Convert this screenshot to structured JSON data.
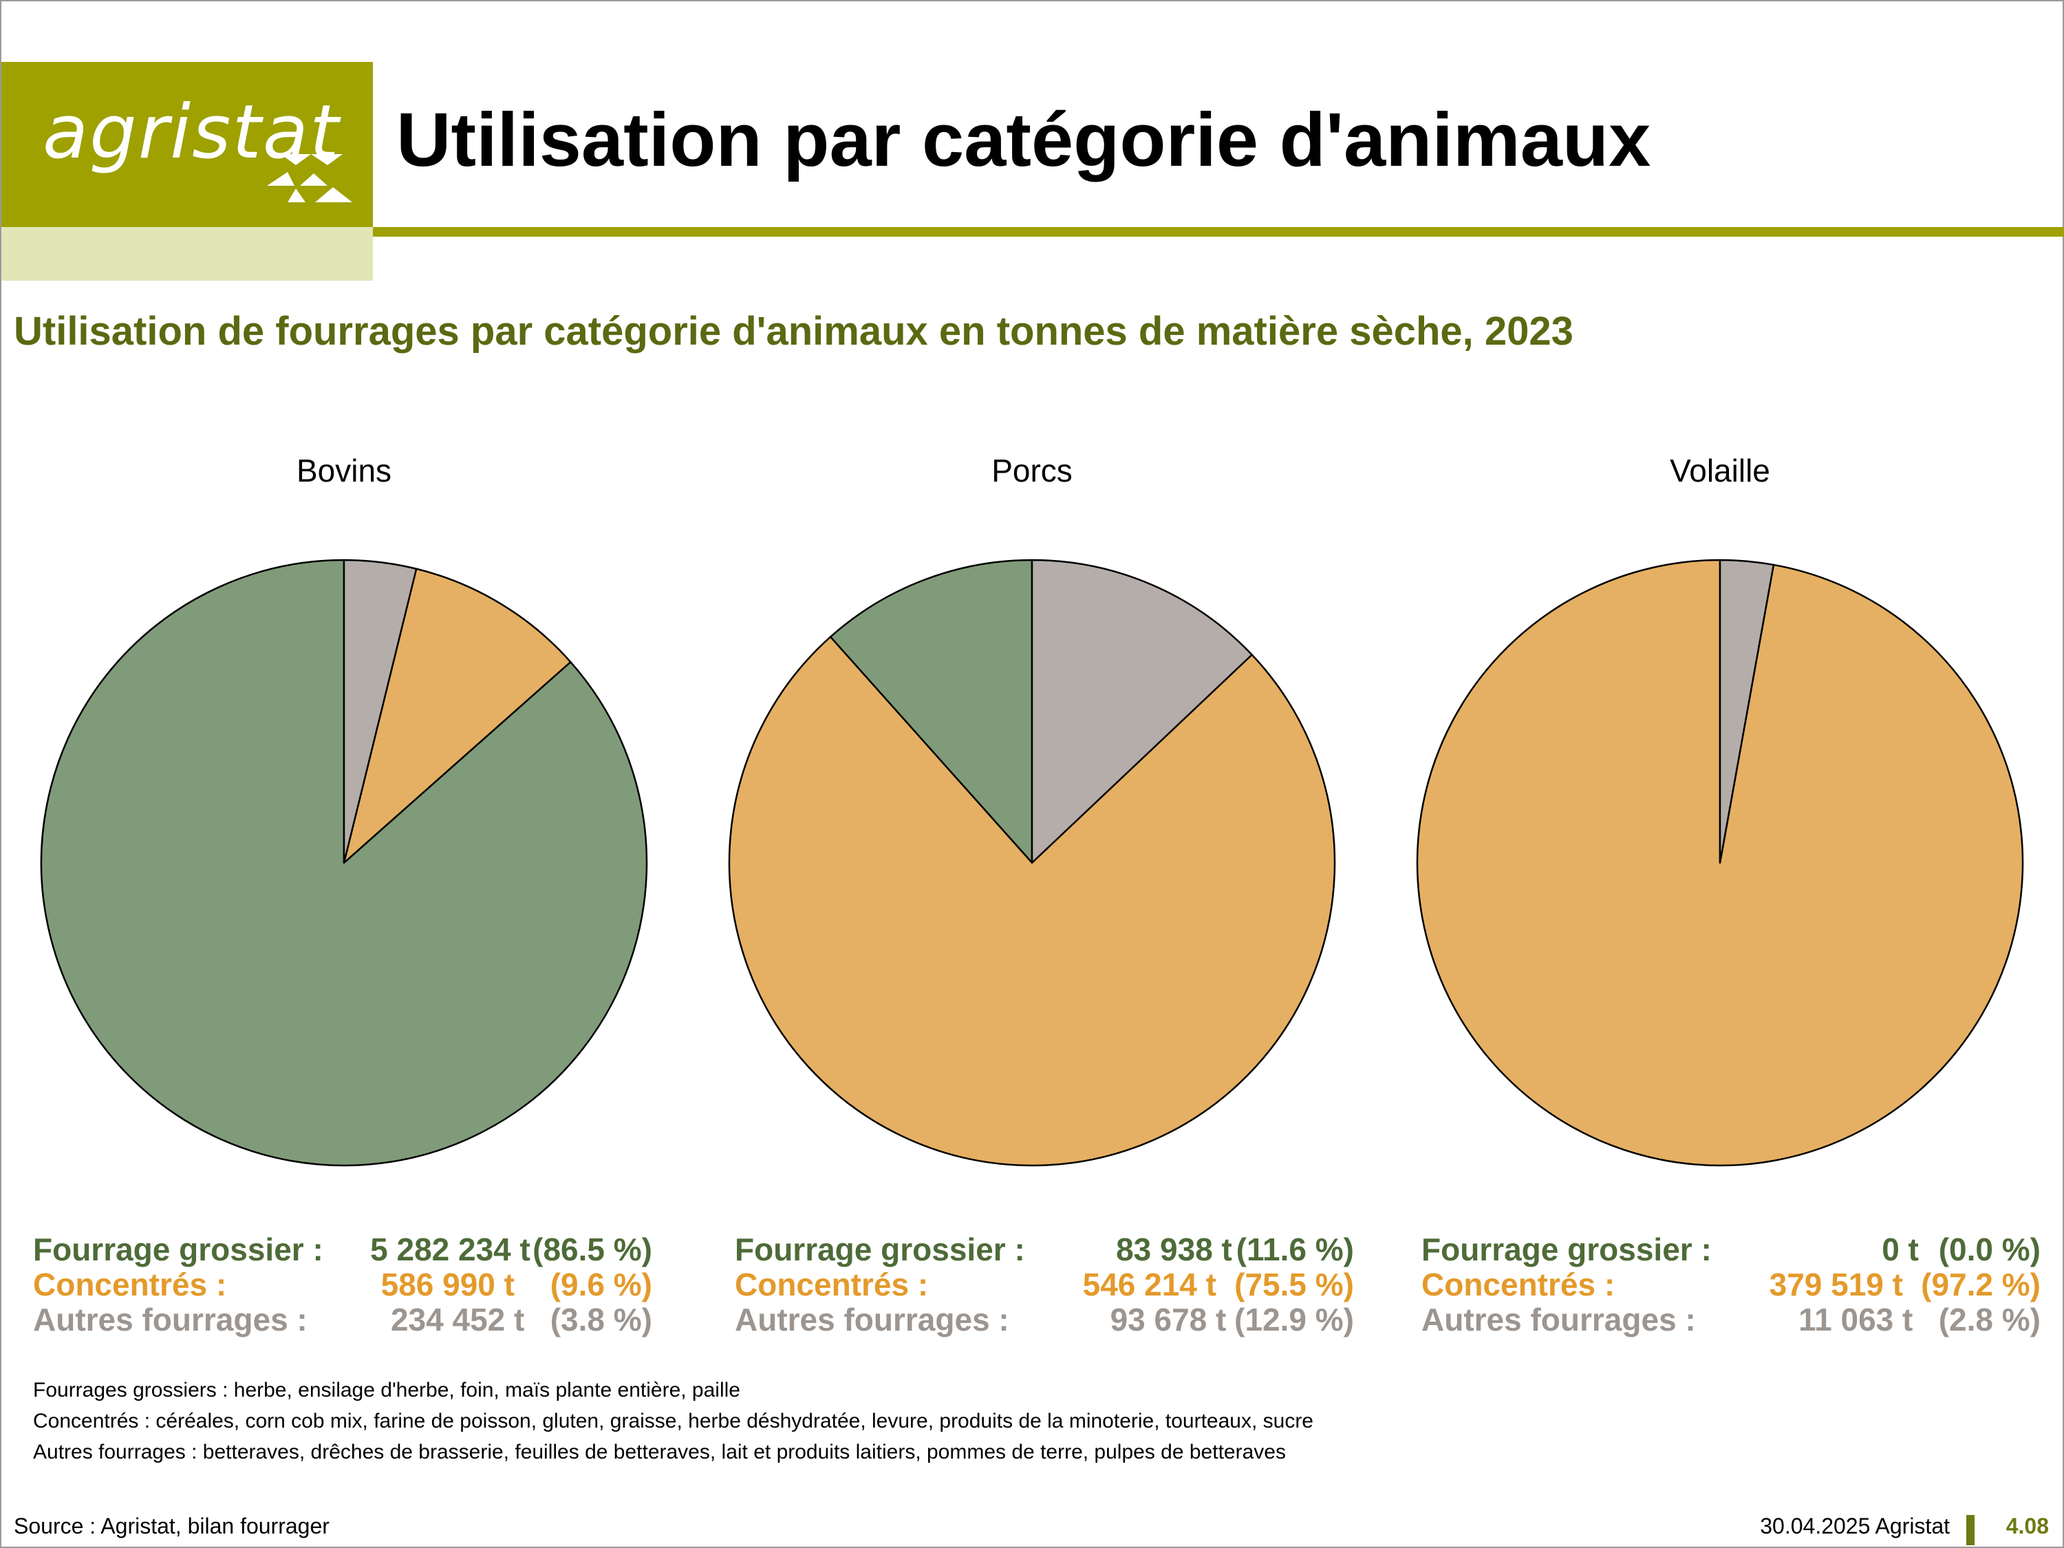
{
  "header": {
    "logo_text": "agristat",
    "title": "Utilisation par catégorie d'animaux"
  },
  "subtitle": "Utilisation de fourrages par catégorie d'animaux en tonnes de matière sèche, 2023",
  "colors": {
    "accent": "#9ea100",
    "accent_light": "#e2e6b6",
    "subtitle": "#5a6a12",
    "fourrage_grossier": "#809b7a",
    "concentres": "#e5b063",
    "autres_fourrages": "#b4adaa",
    "fourrage_grossier_text": "#4e6b38",
    "concentres_text": "#e49a2b",
    "autres_fourrages_text": "#9c9590"
  },
  "chart_data": [
    {
      "type": "pie",
      "title": "Bovins",
      "categories": [
        "Fourrage grossier :",
        "Concentrés :",
        "Autres fourrages :"
      ],
      "values": [
        5282234,
        586990,
        234452
      ],
      "value_labels": [
        "5 282 234 t",
        "586 990 t",
        "234 452 t"
      ],
      "percent_labels": [
        "(86.5 %)",
        "(9.6 %)",
        "(3.8 %)"
      ]
    },
    {
      "type": "pie",
      "title": "Porcs",
      "categories": [
        "Fourrage grossier :",
        "Concentrés :",
        "Autres fourrages :"
      ],
      "values": [
        83938,
        546214,
        93678
      ],
      "value_labels": [
        "83 938 t",
        "546 214 t",
        "93 678 t"
      ],
      "percent_labels": [
        "(11.6 %)",
        "(75.5 %)",
        "(12.9 %)"
      ]
    },
    {
      "type": "pie",
      "title": "Volaille",
      "categories": [
        "Fourrage grossier :",
        "Concentrés :",
        "Autres fourrages :"
      ],
      "values": [
        0,
        379519,
        11063
      ],
      "value_labels": [
        "0 t",
        "379 519 t",
        "11 063 t"
      ],
      "percent_labels": [
        "(0.0 %)",
        "(97.2 %)",
        "(2.8 %)"
      ]
    }
  ],
  "notes": [
    "Fourrages grossiers : herbe, ensilage d'herbe, foin, maïs plante entière, paille",
    "Concentrés : céréales, corn cob mix, farine de poisson, gluten, graisse, herbe déshydratée, levure, produits de la minoterie, tourteaux, sucre",
    "Autres fourrages : betteraves, drêches de brasserie, feuilles de betteraves, lait et produits laitiers, pommes de terre, pulpes de betteraves"
  ],
  "footer": {
    "source": "Source : Agristat, bilan fourrager",
    "date": "30.04.2025 Agristat",
    "page": "4.08"
  }
}
